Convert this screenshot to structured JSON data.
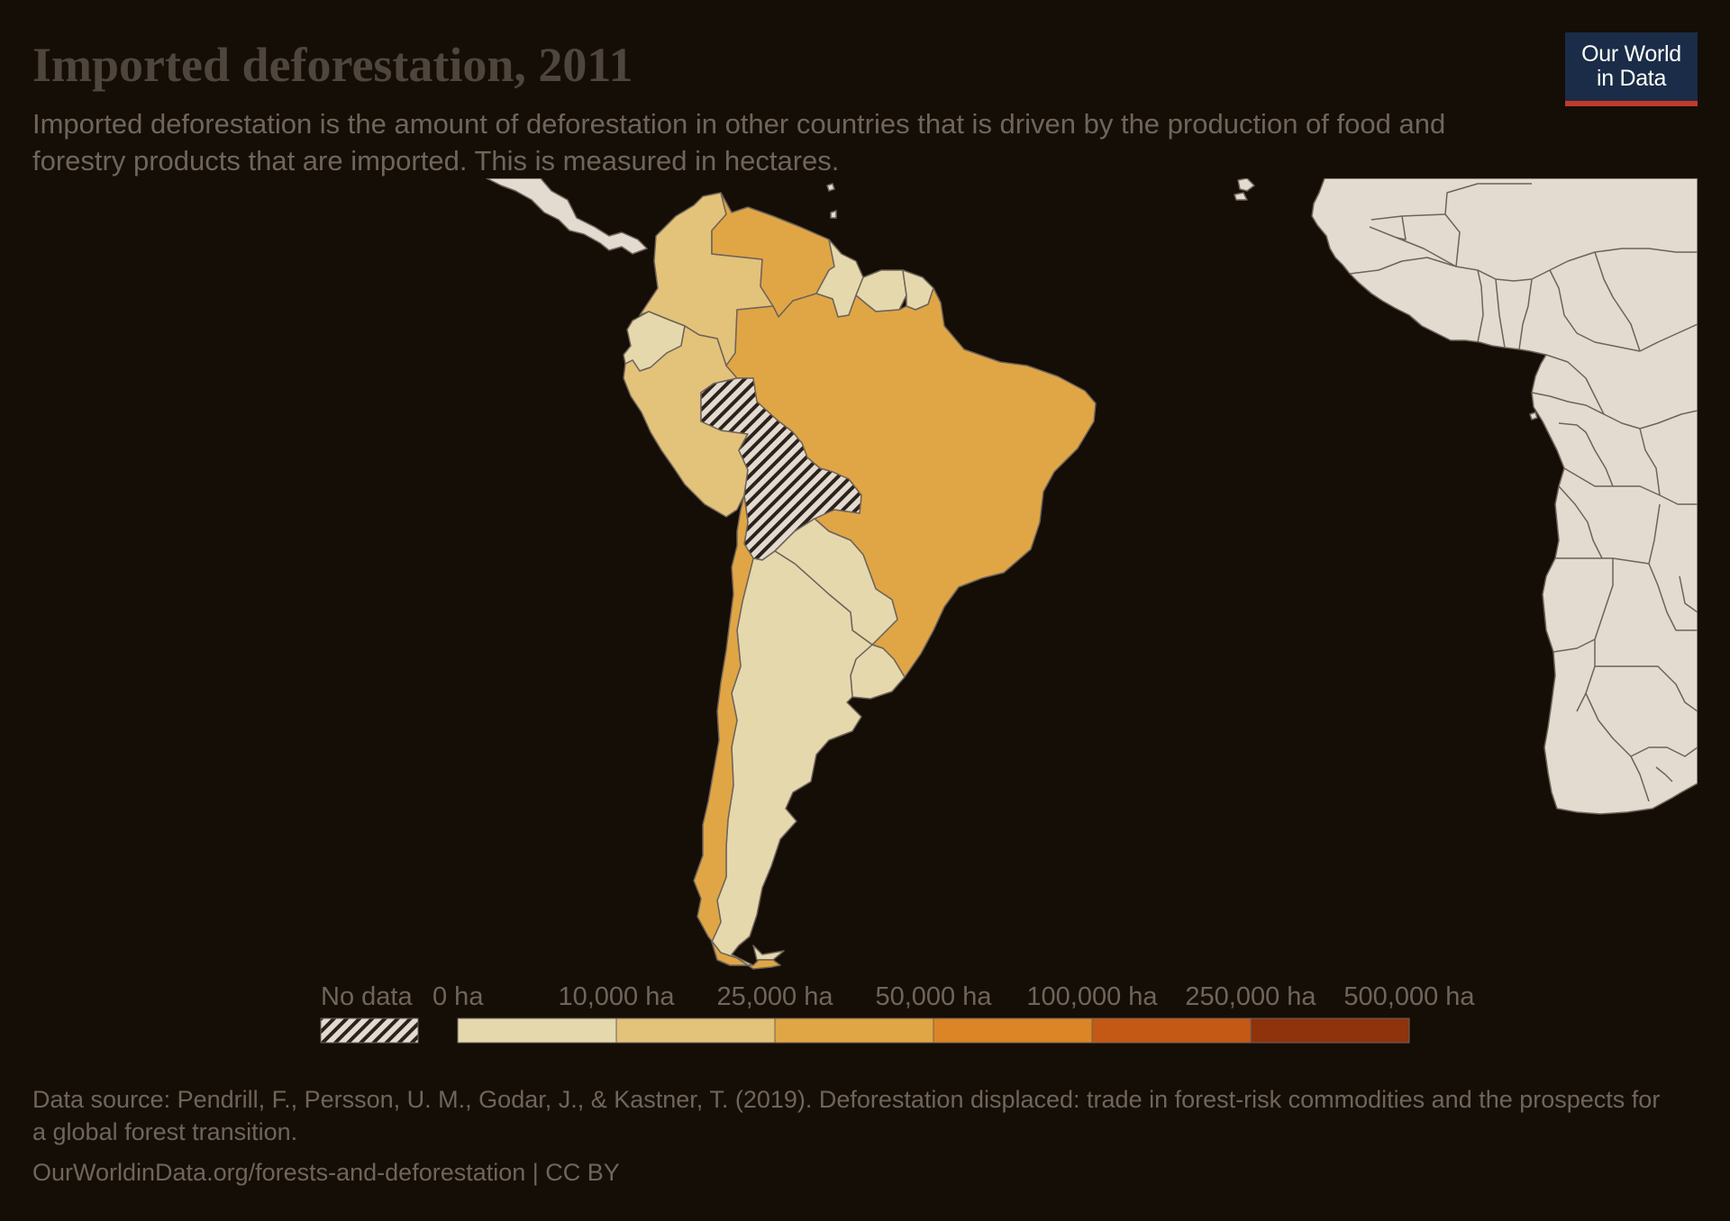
{
  "title": "Imported deforestation, 2011",
  "subtitle": "Imported deforestation is the amount of deforestation in other countries that is driven by the production of food and forestry products that are imported. This is measured in hectares.",
  "logo": {
    "line1": "Our World",
    "line2": "in Data",
    "background": "#1a2c47",
    "accent": "#c0392b"
  },
  "legend": {
    "no_data_label": "No data",
    "bins": [
      "0 ha",
      "10,000 ha",
      "25,000 ha",
      "50,000 ha",
      "100,000 ha",
      "250,000 ha",
      "500,000 ha"
    ],
    "colors": [
      "#e5d8ad",
      "#e3c27a",
      "#e0a645",
      "#db8526",
      "#c35914",
      "#8e330c"
    ]
  },
  "source": {
    "text": "Data source: Pendrill, F., Persson, U. M., Godar, J., & Kastner, T. (2019). Deforestation displaced: trade in forest-risk commodities and the prospects for a global forest transition.",
    "url": "OurWorldinData.org/forests-and-deforestation | CC BY"
  },
  "map": {
    "region": "South America",
    "countries": [
      {
        "name": "Colombia",
        "value_bin": "10,000–25,000 ha",
        "color": "#e3c27a"
      },
      {
        "name": "Venezuela",
        "value_bin": "25,000–50,000 ha",
        "color": "#e0a645"
      },
      {
        "name": "Guyana",
        "value_bin": "0–10,000 ha",
        "color": "#e5d8ad"
      },
      {
        "name": "Suriname",
        "value_bin": "0–10,000 ha",
        "color": "#e5d8ad"
      },
      {
        "name": "French Guiana",
        "value_bin": "0–10,000 ha",
        "color": "#e5d8ad"
      },
      {
        "name": "Ecuador",
        "value_bin": "0–10,000 ha",
        "color": "#e5d8ad"
      },
      {
        "name": "Peru",
        "value_bin": "10,000–25,000 ha",
        "color": "#e3c27a"
      },
      {
        "name": "Brazil",
        "value_bin": "25,000–50,000 ha",
        "color": "#e0a645"
      },
      {
        "name": "Bolivia",
        "value_bin": "No data",
        "color": "hatched"
      },
      {
        "name": "Paraguay",
        "value_bin": "0–10,000 ha",
        "color": "#e5d8ad"
      },
      {
        "name": "Uruguay",
        "value_bin": "0–10,000 ha",
        "color": "#e5d8ad"
      },
      {
        "name": "Argentina",
        "value_bin": "0–10,000 ha",
        "color": "#e5d8ad"
      },
      {
        "name": "Chile",
        "value_bin": "25,000–50,000 ha",
        "color": "#e0a645"
      }
    ],
    "other_land_color": "#e3dad0",
    "border_color": "#6e6359"
  }
}
